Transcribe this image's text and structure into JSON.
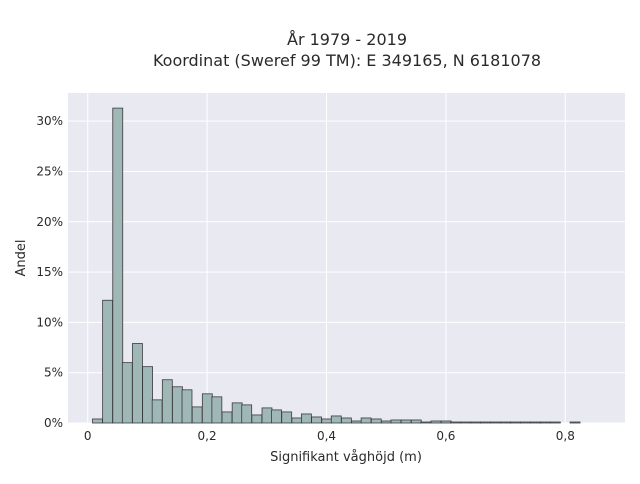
{
  "chart_data": {
    "type": "bar",
    "title_lines": [
      "År 1979 - 2019",
      "Koordinat (Sweref 99 TM): E 349165, N 6181078"
    ],
    "xlabel": "Signifikant våghöjd (m)",
    "ylabel": "Andel",
    "x_ticks": [
      {
        "value": 0,
        "label": "0"
      },
      {
        "value": 0.2,
        "label": "0,2"
      },
      {
        "value": 0.4,
        "label": "0,4"
      },
      {
        "value": 0.6,
        "label": "0,6"
      },
      {
        "value": 0.8,
        "label": "0,8"
      }
    ],
    "y_ticks": [
      {
        "value": 0,
        "label": "0%"
      },
      {
        "value": 5,
        "label": "5%"
      },
      {
        "value": 10,
        "label": "10%"
      },
      {
        "value": 15,
        "label": "15%"
      },
      {
        "value": 20,
        "label": "20%"
      },
      {
        "value": 25,
        "label": "25%"
      },
      {
        "value": 30,
        "label": "30%"
      }
    ],
    "xlim": [
      -0.033,
      0.9
    ],
    "ylim": [
      0,
      32.8
    ],
    "bin_width": 0.01667,
    "bin_starts": [
      0.008,
      0.025,
      0.042,
      0.058,
      0.075,
      0.092,
      0.108,
      0.125,
      0.142,
      0.158,
      0.175,
      0.192,
      0.208,
      0.225,
      0.242,
      0.258,
      0.275,
      0.292,
      0.308,
      0.325,
      0.342,
      0.358,
      0.375,
      0.392,
      0.408,
      0.425,
      0.442,
      0.458,
      0.475,
      0.492,
      0.508,
      0.525,
      0.542,
      0.558,
      0.575,
      0.592,
      0.608,
      0.625,
      0.642,
      0.658,
      0.675,
      0.692,
      0.708,
      0.725,
      0.742,
      0.758,
      0.775,
      0.808
    ],
    "values": [
      0.4,
      12.2,
      31.3,
      6.0,
      7.9,
      5.6,
      2.3,
      4.3,
      3.6,
      3.3,
      1.6,
      2.9,
      2.6,
      1.1,
      2.0,
      1.8,
      0.8,
      1.5,
      1.3,
      1.1,
      0.5,
      0.9,
      0.6,
      0.4,
      0.7,
      0.5,
      0.2,
      0.5,
      0.4,
      0.2,
      0.3,
      0.3,
      0.3,
      0.1,
      0.2,
      0.2,
      0.1,
      0.1,
      0.1,
      0.1,
      0.1,
      0.1,
      0.1,
      0.1,
      0.1,
      0.1,
      0.1,
      0.1
    ],
    "grid": true,
    "plot_background": "#e9e9f2",
    "bar_color": "#9fb7b7",
    "bar_edge_color": "#3a3a3a"
  }
}
